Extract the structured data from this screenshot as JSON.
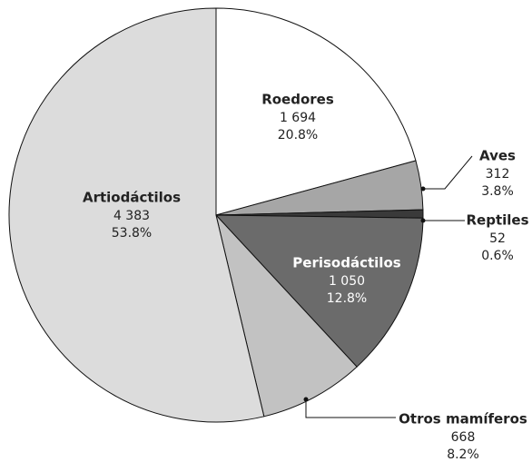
{
  "chart_data": {
    "type": "pie",
    "categories": [
      "Roedores",
      "Aves",
      "Reptiles",
      "Perisodáctilos",
      "Otros mamíferos",
      "Artiodáctilos"
    ],
    "values": [
      1694,
      312,
      52,
      1050,
      668,
      4383
    ],
    "value_labels": [
      "1 694",
      "312",
      "52",
      "1 050",
      "668",
      "4 383"
    ],
    "percentages": [
      20.8,
      3.8,
      0.6,
      12.8,
      8.2,
      53.8
    ],
    "percentage_labels": [
      "20.8%",
      "3.8%",
      "0.6%",
      "12.8%",
      "8.2%",
      "53.8%"
    ],
    "colors": [
      "#ffffff",
      "#a6a6a6",
      "#3a3a3a",
      "#6b6b6b",
      "#c2c2c2",
      "#dcdcdc"
    ]
  }
}
